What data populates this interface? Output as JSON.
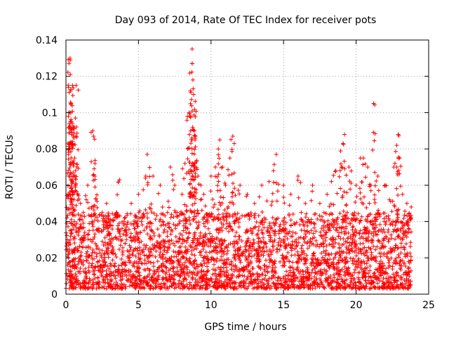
{
  "chart_data": {
    "type": "scatter",
    "title": "Day 093 of 2014, Rate Of TEC Index for receiver pots",
    "xlabel": "GPS time / hours",
    "ylabel": "ROTI / TECUs",
    "xlim": [
      0,
      25
    ],
    "ylim": [
      0,
      0.14
    ],
    "xticks": [
      0,
      5,
      10,
      15,
      20,
      25
    ],
    "yticks": [
      0,
      0.02,
      0.04,
      0.06,
      0.08,
      0.1,
      0.12,
      0.14
    ],
    "xtick_labels": [
      "0",
      "5",
      "10",
      "15",
      "20",
      "25"
    ],
    "ytick_labels": [
      "0",
      "0.02",
      "0.04",
      "0.06",
      "0.08",
      "0.1",
      "0.12",
      "0.14"
    ],
    "grid": true,
    "marker": "+",
    "series": [
      {
        "name": "ROTI",
        "color": "#ff0000",
        "points": [
          [
            0.1,
            0.01
          ],
          [
            0.1,
            0.03
          ],
          [
            0.15,
            0.055
          ],
          [
            0.2,
            0.065
          ],
          [
            0.25,
            0.1
          ],
          [
            0.28,
            0.13
          ],
          [
            0.3,
            0.129
          ],
          [
            0.3,
            0.121
          ],
          [
            0.32,
            0.112
          ],
          [
            0.35,
            0.105
          ],
          [
            0.38,
            0.095
          ],
          [
            0.4,
            0.088
          ],
          [
            0.45,
            0.115
          ],
          [
            0.5,
            0.092
          ],
          [
            0.5,
            0.082
          ],
          [
            0.55,
            0.086
          ],
          [
            0.6,
            0.075
          ],
          [
            0.65,
            0.097
          ],
          [
            0.7,
            0.115
          ],
          [
            0.75,
            0.07
          ],
          [
            0.8,
            0.055
          ],
          [
            1.0,
            0.05
          ],
          [
            1.2,
            0.045
          ],
          [
            1.4,
            0.052
          ],
          [
            1.5,
            0.06
          ],
          [
            1.6,
            0.035
          ],
          [
            1.8,
            0.04
          ],
          [
            1.85,
            0.09
          ],
          [
            1.9,
            0.087
          ],
          [
            2.0,
            0.072
          ],
          [
            2.0,
            0.065
          ],
          [
            2.2,
            0.035
          ],
          [
            2.5,
            0.045
          ],
          [
            2.8,
            0.05
          ],
          [
            3.0,
            0.03
          ],
          [
            3.5,
            0.045
          ],
          [
            3.7,
            0.063
          ],
          [
            4.0,
            0.04
          ],
          [
            4.5,
            0.05
          ],
          [
            5.0,
            0.055
          ],
          [
            5.2,
            0.04
          ],
          [
            5.5,
            0.065
          ],
          [
            5.6,
            0.077
          ],
          [
            6.0,
            0.065
          ],
          [
            6.5,
            0.06
          ],
          [
            7.0,
            0.045
          ],
          [
            7.2,
            0.07
          ],
          [
            7.5,
            0.06
          ],
          [
            8.0,
            0.055
          ],
          [
            8.2,
            0.072
          ],
          [
            8.4,
            0.08
          ],
          [
            8.5,
            0.1
          ],
          [
            8.6,
            0.09
          ],
          [
            8.6,
            0.098
          ],
          [
            8.7,
            0.135
          ],
          [
            8.7,
            0.127
          ],
          [
            8.75,
            0.118
          ],
          [
            8.8,
            0.11
          ],
          [
            8.85,
            0.09
          ],
          [
            8.9,
            0.085
          ],
          [
            9.0,
            0.073
          ],
          [
            9.1,
            0.065
          ],
          [
            9.3,
            0.06
          ],
          [
            9.5,
            0.055
          ],
          [
            10.0,
            0.065
          ],
          [
            10.3,
            0.07
          ],
          [
            10.5,
            0.08
          ],
          [
            10.6,
            0.085
          ],
          [
            10.8,
            0.07
          ],
          [
            11.0,
            0.06
          ],
          [
            11.3,
            0.075
          ],
          [
            11.5,
            0.087
          ],
          [
            11.6,
            0.083
          ],
          [
            12.0,
            0.06
          ],
          [
            12.5,
            0.055
          ],
          [
            13.0,
            0.05
          ],
          [
            13.5,
            0.06
          ],
          [
            14.0,
            0.062
          ],
          [
            14.3,
            0.068
          ],
          [
            14.5,
            0.077
          ],
          [
            15.0,
            0.06
          ],
          [
            15.5,
            0.055
          ],
          [
            16.0,
            0.065
          ],
          [
            16.5,
            0.05
          ],
          [
            17.0,
            0.06
          ],
          [
            17.5,
            0.05
          ],
          [
            18.0,
            0.055
          ],
          [
            18.3,
            0.062
          ],
          [
            18.6,
            0.068
          ],
          [
            19.0,
            0.07
          ],
          [
            19.1,
            0.083
          ],
          [
            19.2,
            0.088
          ],
          [
            19.5,
            0.07
          ],
          [
            20.0,
            0.06
          ],
          [
            20.3,
            0.075
          ],
          [
            20.5,
            0.075
          ],
          [
            20.8,
            0.07
          ],
          [
            21.0,
            0.06
          ],
          [
            21.2,
            0.105
          ],
          [
            21.5,
            0.065
          ],
          [
            22.0,
            0.06
          ],
          [
            22.3,
            0.052
          ],
          [
            22.6,
            0.07
          ],
          [
            22.8,
            0.082
          ],
          [
            22.9,
            0.088
          ],
          [
            23.0,
            0.075
          ],
          [
            23.2,
            0.055
          ],
          [
            23.5,
            0.05
          ],
          [
            23.8,
            0.048
          ]
        ],
        "band": {
          "x_range": [
            0,
            23.8
          ],
          "y_min": 0.003,
          "y_typical_max": 0.045
        }
      }
    ]
  }
}
